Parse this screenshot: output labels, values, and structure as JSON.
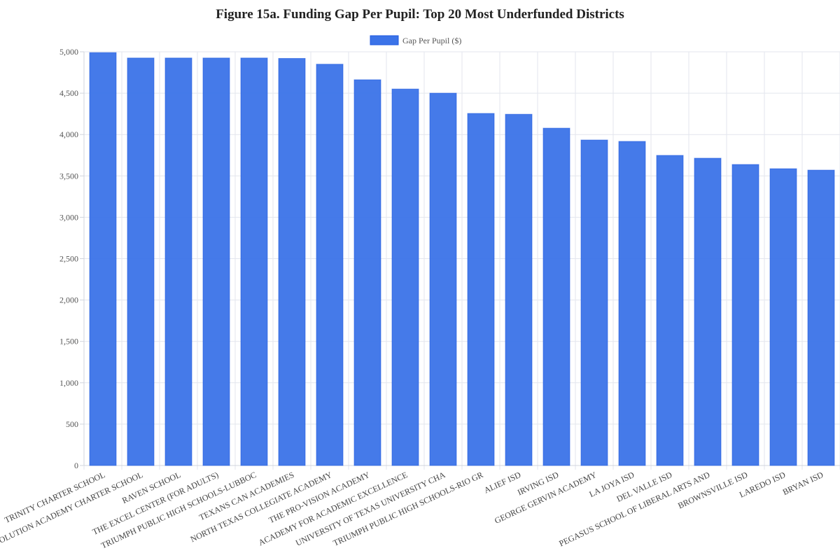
{
  "chart_data": {
    "type": "bar",
    "title": "Figure 15a. Funding Gap Per Pupil: Top 20 Most Underfunded Districts",
    "xlabel": "",
    "ylabel": "",
    "ylim": [
      0,
      5000
    ],
    "yticks": [
      0,
      500,
      1000,
      1500,
      2000,
      2500,
      3000,
      3500,
      4000,
      4500,
      5000
    ],
    "ytick_labels": [
      "0",
      "500",
      "1,000",
      "1,500",
      "2,000",
      "2,500",
      "3,000",
      "3,500",
      "4,000",
      "4,500",
      "5,000"
    ],
    "grid": true,
    "legend_placement": "top-center",
    "bar_color": "#3b73e8",
    "bar_border_color": "#1f5ae0",
    "categories": [
      "TRINITY CHARTER SCHOOL",
      "EVOLUTION ACADEMY CHARTER SCHOOL",
      "RAVEN SCHOOL",
      "THE EXCEL CENTER (FOR ADULTS)",
      "TRIUMPH PUBLIC HIGH SCHOOLS-LUBBOC",
      "TEXANS CAN ACADEMIES",
      "NORTH TEXAS COLLEGIATE ACADEMY",
      "THE PRO-VISION ACADEMY",
      "ACADEMY FOR ACADEMIC EXCELLENCE",
      "UNIVERSITY OF TEXAS UNIVERSITY CHA",
      "TRIUMPH PUBLIC HIGH SCHOOLS-RIO GR",
      "ALIEF ISD",
      "IRVING ISD",
      "GEORGE GERVIN ACADEMY",
      "LA JOYA ISD",
      "DEL VALLE ISD",
      "PEGASUS SCHOOL OF LIBERAL ARTS AND",
      "BROWNSVILLE ISD",
      "LAREDO ISD",
      "BRYAN ISD"
    ],
    "series": [
      {
        "name": "Gap Per Pupil ($)",
        "values": [
          4990,
          4925,
          4925,
          4925,
          4925,
          4920,
          4850,
          4662,
          4550,
          4500,
          4255,
          4245,
          4077,
          3934,
          3917,
          3748,
          3714,
          3638,
          3587,
          3570
        ]
      }
    ]
  }
}
